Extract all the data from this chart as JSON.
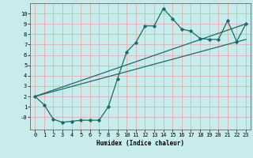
{
  "xlabel": "Humidex (Indice chaleur)",
  "bg_color": "#c8ecec",
  "grid_color": "#e8a0a0",
  "line_color": "#1a6b6b",
  "xlim": [
    -0.5,
    23.5
  ],
  "ylim": [
    -1.2,
    11.0
  ],
  "xticks": [
    0,
    1,
    2,
    3,
    4,
    5,
    6,
    7,
    8,
    9,
    10,
    11,
    12,
    13,
    14,
    15,
    16,
    17,
    18,
    19,
    20,
    21,
    22,
    23
  ],
  "yticks": [
    0,
    1,
    2,
    3,
    4,
    5,
    6,
    7,
    8,
    9,
    10
  ],
  "ytick_labels": [
    "-0",
    "1",
    "2",
    "3",
    "4",
    "5",
    "6",
    "7",
    "8",
    "9",
    "10"
  ],
  "line1_x": [
    0,
    1,
    2,
    3,
    4,
    5,
    6,
    7,
    8,
    9,
    10,
    11,
    12,
    13,
    14,
    15,
    16,
    17,
    18,
    19,
    20,
    21,
    22,
    23
  ],
  "line1_y": [
    2.0,
    1.2,
    -0.2,
    -0.5,
    -0.4,
    -0.3,
    -0.3,
    -0.3,
    1.0,
    3.7,
    6.3,
    7.2,
    8.8,
    8.8,
    10.5,
    9.5,
    8.5,
    8.3,
    7.6,
    7.5,
    7.5,
    9.3,
    7.3,
    9.0
  ],
  "line2_x": [
    0,
    23
  ],
  "line2_y": [
    2.0,
    9.0
  ],
  "line3_x": [
    0,
    23
  ],
  "line3_y": [
    2.0,
    7.5
  ],
  "xlabel_fontsize": 5.5,
  "tick_fontsize": 5.0
}
